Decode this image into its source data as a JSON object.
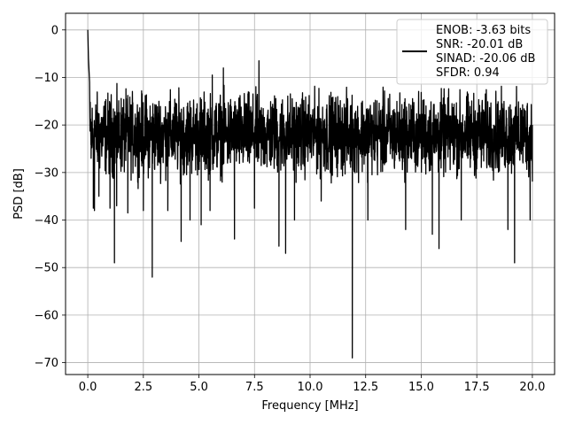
{
  "chart_data": {
    "type": "line",
    "title": "",
    "xlabel": "Frequency [MHz]",
    "ylabel": "PSD [dB]",
    "xlim": [
      -1.0,
      21.0
    ],
    "ylim": [
      -72.5,
      3.5
    ],
    "xticks": [
      0.0,
      2.5,
      5.0,
      7.5,
      10.0,
      12.5,
      15.0,
      17.5,
      20.0
    ],
    "xtick_labels": [
      "0.0",
      "2.5",
      "5.0",
      "7.5",
      "10.0",
      "12.5",
      "15.0",
      "17.5",
      "20.0"
    ],
    "yticks": [
      0,
      -10,
      -20,
      -30,
      -40,
      -50,
      -60,
      -70
    ],
    "ytick_labels": [
      "0",
      "−10",
      "−20",
      "−30",
      "−40",
      "−50",
      "−60",
      "−70"
    ],
    "grid": true,
    "legend_position": "top-right",
    "series": [
      {
        "line_color": "#000000",
        "legend_lines": [
          "ENOB: -3.63 bits",
          "SNR: -20.01 dB",
          "SINAD: -20.06 dB",
          "SFDR: 0.94"
        ],
        "noise_band": {
          "x_start": 0.1,
          "x_end": 20.0,
          "upper": -10.0,
          "lower": -34.0,
          "mean": -21.0
        },
        "points": [
          {
            "x": 0.0,
            "y": 0.0
          },
          {
            "x": 0.03,
            "y": -6.0
          },
          {
            "x": 0.08,
            "y": -11.0
          },
          {
            "x": 0.15,
            "y": -27.0
          },
          {
            "x": 0.25,
            "y": -37.5
          },
          {
            "x": 0.3,
            "y": -38.0
          },
          {
            "x": 0.5,
            "y": -35.0
          },
          {
            "x": 1.0,
            "y": -37.5
          },
          {
            "x": 1.2,
            "y": -49.0
          },
          {
            "x": 1.3,
            "y": -37.0
          },
          {
            "x": 1.8,
            "y": -38.5
          },
          {
            "x": 2.5,
            "y": -38.0
          },
          {
            "x": 2.9,
            "y": -52.0
          },
          {
            "x": 3.6,
            "y": -38.0
          },
          {
            "x": 4.2,
            "y": -44.5
          },
          {
            "x": 4.6,
            "y": -40.0
          },
          {
            "x": 5.1,
            "y": -41.0
          },
          {
            "x": 5.5,
            "y": -38.0
          },
          {
            "x": 5.6,
            "y": -9.5
          },
          {
            "x": 6.1,
            "y": -8.0
          },
          {
            "x": 6.6,
            "y": -44.0
          },
          {
            "x": 7.5,
            "y": -37.5
          },
          {
            "x": 7.7,
            "y": -6.5
          },
          {
            "x": 8.6,
            "y": -45.5
          },
          {
            "x": 8.9,
            "y": -47.0
          },
          {
            "x": 9.3,
            "y": -40.0
          },
          {
            "x": 10.5,
            "y": -36.0
          },
          {
            "x": 11.9,
            "y": -69.0
          },
          {
            "x": 12.6,
            "y": -40.0
          },
          {
            "x": 14.3,
            "y": -42.0
          },
          {
            "x": 15.5,
            "y": -43.0
          },
          {
            "x": 15.8,
            "y": -46.0
          },
          {
            "x": 16.8,
            "y": -40.0
          },
          {
            "x": 19.2,
            "y": -49.0
          },
          {
            "x": 18.9,
            "y": -42.0
          },
          {
            "x": 19.9,
            "y": -40.0
          },
          {
            "x": 20.0,
            "y": -20.0
          }
        ]
      }
    ]
  }
}
